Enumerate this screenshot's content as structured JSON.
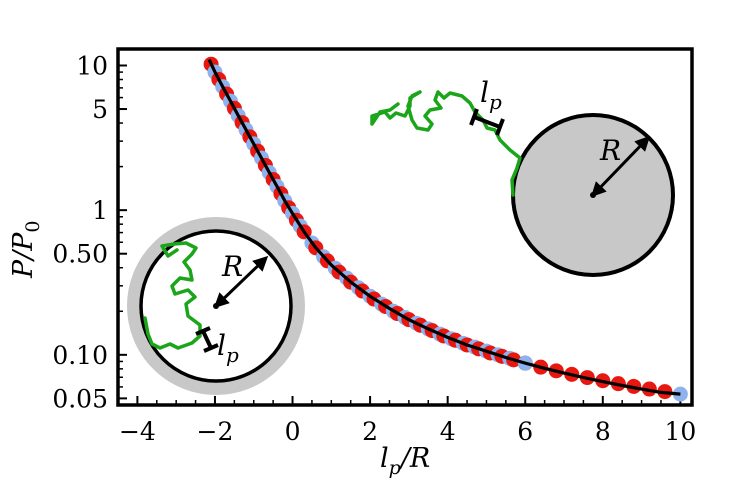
{
  "chart_data": {
    "type": "scatter",
    "title": "",
    "xlabel": "l_p/R",
    "ylabel": "P/P_0",
    "xlim": [
      -4.5,
      10.3
    ],
    "ylim": [
      0.045,
      13
    ],
    "y_scale": "log",
    "grid": false,
    "x_ticks": [
      -4,
      -2,
      0,
      2,
      4,
      6,
      8,
      10
    ],
    "x_tick_labels": [
      "−4",
      "−2",
      "0",
      "2",
      "4",
      "6",
      "8",
      "10"
    ],
    "y_ticks": [
      0.05,
      0.1,
      0.5,
      1,
      5,
      10
    ],
    "y_tick_labels": [
      "0.05",
      "0.10",
      "0.50",
      "1",
      "5",
      "10"
    ],
    "colors": {
      "red": "#e8170f",
      "blue": "#8db3ee",
      "fit": "#000000",
      "chain": "#1aa51a",
      "disk": "#c8c8c8"
    },
    "series": [
      {
        "color": "red",
        "x": [
          -2.1,
          -1.9,
          -1.7,
          -1.5,
          -1.3,
          -1.1,
          -0.9,
          -0.7,
          -0.5,
          -0.3,
          -0.1,
          0.1,
          0.3,
          0.6,
          0.9,
          1.2,
          1.5,
          1.8,
          2.1,
          2.4,
          2.7,
          3.0,
          3.3,
          3.6,
          3.9,
          4.2,
          4.5,
          4.8,
          5.1,
          5.4,
          5.7,
          6.0,
          6.4,
          6.8,
          7.2,
          7.6,
          8.0,
          8.4,
          8.8,
          9.2,
          9.6
        ],
        "y": [
          10.2,
          8.0,
          6.35,
          5.06,
          4.03,
          3.21,
          2.56,
          2.04,
          1.63,
          1.3,
          1.04,
          0.852,
          0.708,
          0.549,
          0.446,
          0.373,
          0.318,
          0.276,
          0.243,
          0.216,
          0.193,
          0.175,
          0.16,
          0.147,
          0.135,
          0.126,
          0.117,
          0.11,
          0.103,
          0.0976,
          0.0923,
          0.0876,
          0.0822,
          0.0775,
          0.0733,
          0.0696,
          0.0662,
          0.0632,
          0.0605,
          0.058,
          0.0557
        ]
      },
      {
        "color": "blue",
        "x": [
          -2.0,
          -1.8,
          -1.6,
          -1.4,
          -1.2,
          -1.0,
          -0.8,
          -0.6,
          -0.4,
          -0.2,
          0.0,
          0.2,
          0.5,
          0.8,
          1.1,
          1.4,
          1.7,
          2.0,
          2.3,
          2.6,
          2.9,
          3.2,
          3.5,
          3.8,
          4.1,
          4.4,
          4.7,
          5.0,
          5.3,
          5.6,
          6.0,
          10.0
        ],
        "y": [
          9.0,
          7.13,
          5.67,
          4.51,
          3.6,
          2.87,
          2.29,
          1.82,
          1.46,
          1.16,
          0.95,
          0.776,
          0.593,
          0.476,
          0.397,
          0.339,
          0.291,
          0.254,
          0.224,
          0.2,
          0.181,
          0.165,
          0.151,
          0.139,
          0.129,
          0.12,
          0.113,
          0.106,
          0.1,
          0.0946,
          0.0876,
          0.0535
        ]
      }
    ],
    "fit": {
      "x": [
        -2.15,
        -2.0,
        -1.8,
        -1.6,
        -1.4,
        -1.2,
        -1.0,
        -0.8,
        -0.6,
        -0.4,
        -0.2,
        0.0,
        0.3,
        0.6,
        1.0,
        1.5,
        2.0,
        2.5,
        3.0,
        3.5,
        4.0,
        4.5,
        5.0,
        5.5,
        6.0,
        6.5,
        7.0,
        7.5,
        8.0,
        8.5,
        9.0,
        9.5,
        10.0
      ],
      "y": [
        10.98,
        9.0,
        7.13,
        5.67,
        4.51,
        3.6,
        2.87,
        2.29,
        1.82,
        1.46,
        1.16,
        0.95,
        0.708,
        0.549,
        0.418,
        0.318,
        0.254,
        0.209,
        0.175,
        0.151,
        0.132,
        0.117,
        0.106,
        0.0958,
        0.0876,
        0.0807,
        0.0748,
        0.0697,
        0.0653,
        0.0614,
        0.058,
        0.055,
        0.0535
      ]
    },
    "annotations": {
      "outer_R": "R",
      "outer_lp": "l_p",
      "inner_R": "R",
      "inner_lp": "l_p"
    }
  }
}
